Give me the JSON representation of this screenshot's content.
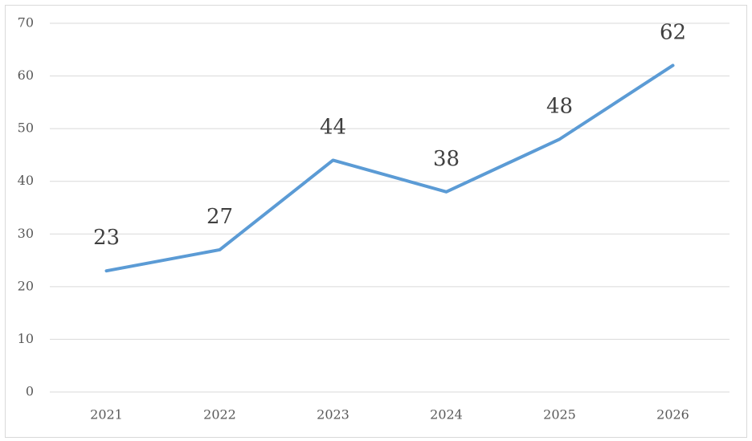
{
  "chart_data": {
    "type": "line",
    "categories": [
      "2021",
      "2022",
      "2023",
      "2024",
      "2025",
      "2026"
    ],
    "values": [
      23,
      27,
      44,
      38,
      48,
      62
    ],
    "color": "#5b9bd5",
    "ylim": [
      0,
      70
    ],
    "yticks": [
      0,
      10,
      20,
      30,
      40,
      50,
      60,
      70
    ],
    "grid": true
  }
}
